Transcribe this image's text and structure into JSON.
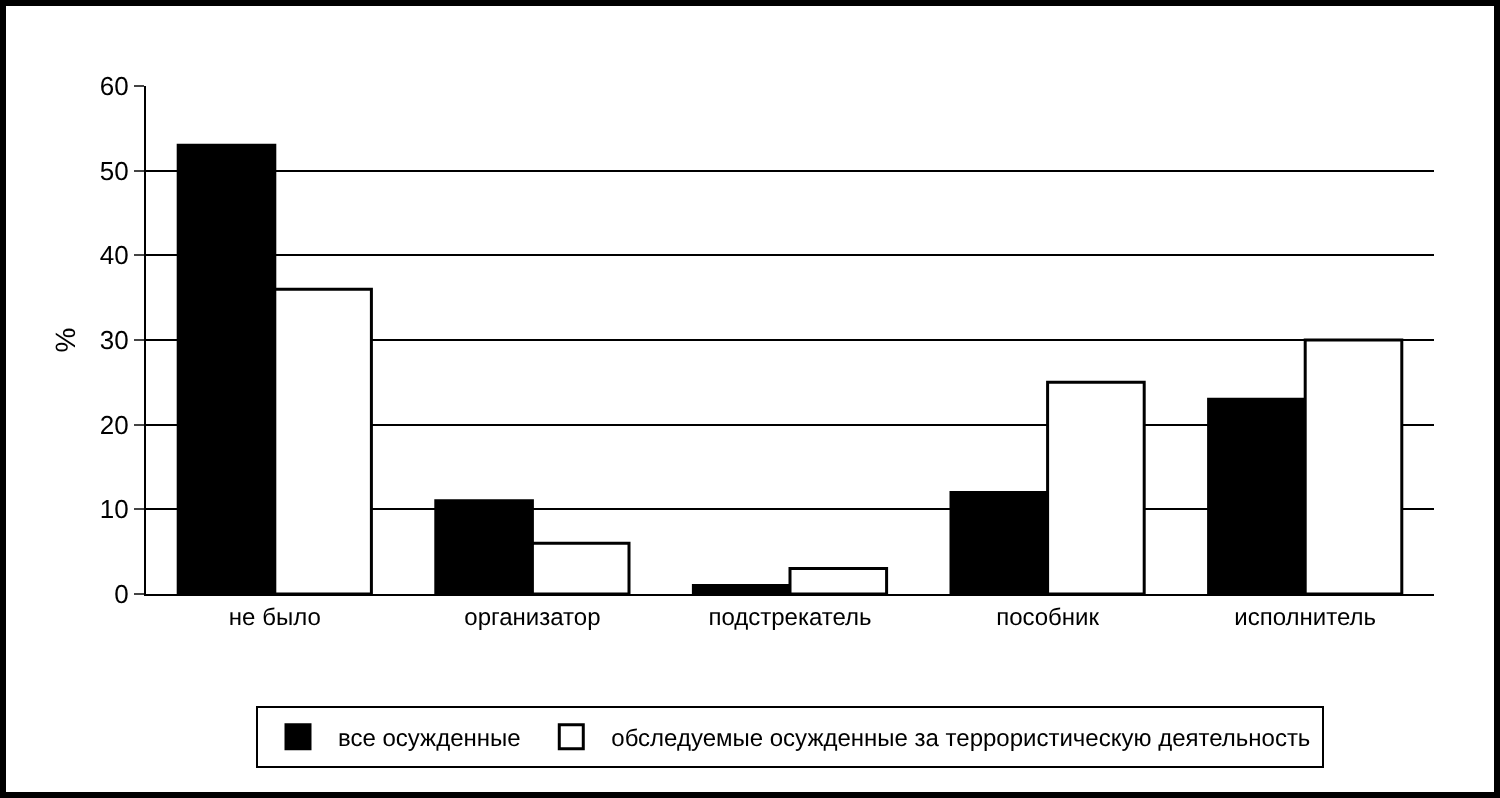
{
  "chart_data": {
    "type": "bar",
    "ylabel": "%",
    "categories": [
      "не было",
      "организатор",
      "подстрекатель",
      "пособник",
      "исполнитель"
    ],
    "series": [
      {
        "name": "все осужденные",
        "color": "#000000",
        "values": [
          53,
          11,
          1,
          12,
          23
        ]
      },
      {
        "name": "обследуемые осужденные за террористическую деятельность",
        "color": "#ffffff",
        "values": [
          36,
          6,
          3,
          25,
          30
        ]
      }
    ],
    "ylim": [
      0,
      60
    ],
    "yticks": [
      0,
      10,
      20,
      30,
      40,
      50,
      60
    ],
    "grid": "y",
    "legend": "bottom"
  }
}
